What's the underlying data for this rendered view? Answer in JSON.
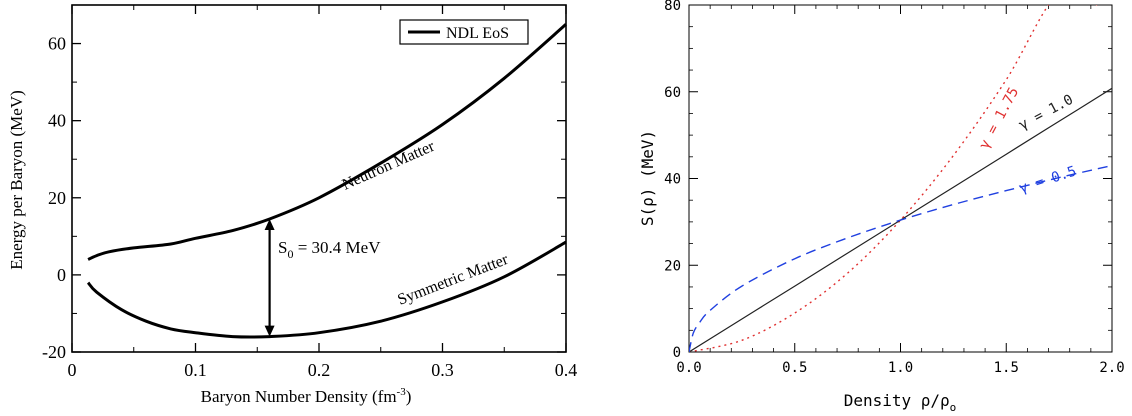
{
  "chart_data": [
    {
      "type": "line",
      "xlabel": "Baryon Number Density  (fm",
      "xlabel_sup": "-3",
      "xlabel_close": ")",
      "ylabel": "Energy per Baryon  (MeV)",
      "xlim": [
        0,
        0.4
      ],
      "ylim": [
        -20,
        70
      ],
      "xticks": [
        "0",
        "0.1",
        "0.2",
        "0.3",
        "0.4"
      ],
      "yticks": [
        "-20",
        "0",
        "20",
        "40",
        "60"
      ],
      "legend": {
        "label": "NDL EoS",
        "position": "top-right"
      },
      "series": [
        {
          "name": "Neutron Matter",
          "x": [
            0.013,
            0.02,
            0.03,
            0.05,
            0.08,
            0.1,
            0.13,
            0.16,
            0.2,
            0.25,
            0.3,
            0.35,
            0.4
          ],
          "y": [
            4,
            5,
            6,
            7,
            8,
            9.5,
            11.5,
            14.5,
            20,
            29,
            39,
            51,
            65
          ]
        },
        {
          "name": "Symmetric Matter",
          "x": [
            0.013,
            0.02,
            0.04,
            0.06,
            0.08,
            0.1,
            0.13,
            0.16,
            0.2,
            0.25,
            0.3,
            0.35,
            0.4
          ],
          "y": [
            -2,
            -4.5,
            -9,
            -12,
            -14,
            -15,
            -16,
            -16,
            -15,
            -12,
            -7,
            -0.5,
            8.5
          ]
        }
      ],
      "annotations": {
        "neutron_label": "Neutron Matter",
        "symmetric_label": "Symmetric Matter",
        "s0_symbol": "S",
        "s0_sub": "0",
        "s0_value": " = 30.4 MeV",
        "arrow_x": 0.16,
        "arrow_y_top": 14.5,
        "arrow_y_bottom": -16
      }
    },
    {
      "type": "line",
      "xlabel": "Density ρ/ρ",
      "xlabel_sub": "o",
      "ylabel": "S(ρ)  (MeV)",
      "xlim": [
        0,
        2
      ],
      "ylim": [
        0,
        80
      ],
      "xticks": [
        "0.0",
        "0.5",
        "1.0",
        "1.5",
        "2.0"
      ],
      "yticks": [
        "0",
        "20",
        "40",
        "60",
        "80"
      ],
      "series": [
        {
          "name": "γ = 1.75",
          "color": "#e03030",
          "dash": "dotted",
          "x": [
            0,
            0.25,
            0.5,
            0.75,
            1.0,
            1.25,
            1.5,
            1.75,
            1.93
          ],
          "y": [
            0,
            2.7,
            9.0,
            18.2,
            30.4,
            45.3,
            62.8,
            83.0,
            80
          ]
        },
        {
          "name": "γ = 1.0",
          "color": "#222222",
          "dash": "solid",
          "x": [
            0,
            0.25,
            0.5,
            0.75,
            1.0,
            1.25,
            1.5,
            1.75,
            2.0
          ],
          "y": [
            0,
            7.6,
            15.2,
            22.8,
            30.4,
            38.0,
            45.6,
            53.2,
            60.8
          ]
        },
        {
          "name": "γ = 0.5",
          "color": "#2040e0",
          "dash": "dashed",
          "x": [
            0,
            0.02,
            0.05,
            0.1,
            0.25,
            0.5,
            0.75,
            1.0,
            1.25,
            1.5,
            1.75,
            2.0
          ],
          "y": [
            0,
            4.3,
            6.8,
            9.6,
            15.2,
            21.5,
            26.3,
            30.4,
            34.0,
            37.2,
            40.2,
            43.0
          ]
        }
      ]
    }
  ]
}
